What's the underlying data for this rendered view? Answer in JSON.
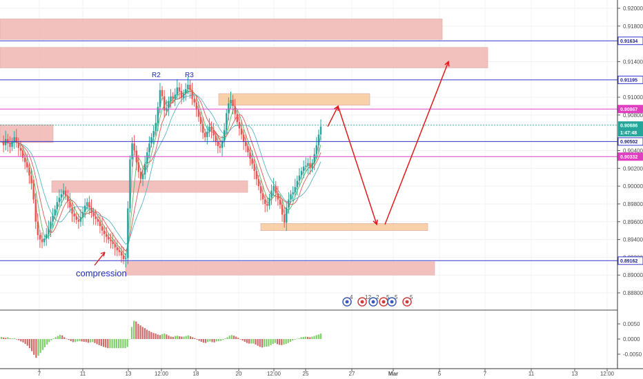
{
  "chart_data": {
    "type": "candlestick",
    "price_axis": {
      "range": [
        0.8862,
        0.9212
      ],
      "tick_labels": [
        "0.92000",
        "0.91800",
        "0.91400",
        "0.91000",
        "0.90800",
        "0.90400",
        "0.90200",
        "0.90000",
        "0.89800",
        "0.89600",
        "0.89400",
        "0.89200",
        "0.89000",
        "0.88800"
      ]
    },
    "oscillator_axis": {
      "range": [
        -0.0072,
        0.0072
      ],
      "tick_labels": [
        "0.0050",
        "0.0000",
        "-0.0050"
      ]
    },
    "time_axis_labels": [
      "7",
      "11",
      "13",
      "12:00",
      "18",
      "20",
      "12:00",
      "25",
      "27",
      "Mar",
      "5",
      "7",
      "11",
      "13",
      "12:00"
    ],
    "horizontal_levels": [
      {
        "price": 0.91634,
        "label": "0.91634",
        "color": "#3333cc"
      },
      {
        "price": 0.91195,
        "label": "0.91195",
        "color": "#3333cc"
      },
      {
        "price": 0.90867,
        "label": "0.90867",
        "color": "#e040c0"
      },
      {
        "price": 0.90502,
        "label": "0.90502",
        "color": "#3333cc"
      },
      {
        "price": 0.90332,
        "label": "0.90332",
        "color": "#e040c0"
      },
      {
        "price": 0.89162,
        "label": "0.89162",
        "color": "#3333cc"
      }
    ],
    "current_price": {
      "label": "0.90686",
      "countdown": "1:47:48",
      "color": "#26a69a"
    },
    "annotations": [
      "R2",
      "R3",
      "compression"
    ],
    "price_series": [
      0.905,
      0.9046,
      0.9053,
      0.9048,
      0.9044,
      0.905,
      0.9055,
      0.9049,
      0.9043,
      0.904,
      0.9032,
      0.9027,
      0.9021,
      0.9012,
      0.9003,
      0.8985,
      0.896,
      0.8945,
      0.894,
      0.8937,
      0.8941,
      0.8946,
      0.8952,
      0.896,
      0.8967,
      0.8974,
      0.8982,
      0.8987,
      0.8991,
      0.8995,
      0.8989,
      0.8983,
      0.8976,
      0.8969,
      0.8966,
      0.8962,
      0.896,
      0.8965,
      0.8971,
      0.8978,
      0.8982,
      0.8976,
      0.897,
      0.8966,
      0.8963,
      0.896,
      0.8955,
      0.895,
      0.8946,
      0.8943,
      0.894,
      0.8938,
      0.8935,
      0.8931,
      0.8928,
      0.8926,
      0.8922,
      0.8918,
      0.8919,
      0.8975,
      0.903,
      0.9048,
      0.904,
      0.9027,
      0.9016,
      0.9008,
      0.9013,
      0.9025,
      0.9038,
      0.9048,
      0.9055,
      0.9062,
      0.9071,
      0.9089,
      0.9108,
      0.9101,
      0.9085,
      0.9088,
      0.9095,
      0.9101,
      0.9098,
      0.9103,
      0.9111,
      0.9107,
      0.9099,
      0.9104,
      0.9109,
      0.9114,
      0.9108,
      0.9098,
      0.9094,
      0.9086,
      0.9078,
      0.907,
      0.906,
      0.9055,
      0.9061,
      0.9067,
      0.9063,
      0.9057,
      0.905,
      0.9045,
      0.9043,
      0.9051,
      0.9063,
      0.9082,
      0.9093,
      0.9097,
      0.909,
      0.9081,
      0.9072,
      0.9065,
      0.9058,
      0.905,
      0.9045,
      0.9038,
      0.9031,
      0.9025,
      0.9017,
      0.9008,
      0.9,
      0.8992,
      0.8985,
      0.898,
      0.8978,
      0.8987,
      0.8995,
      0.9,
      0.8992,
      0.8985,
      0.8979,
      0.8968,
      0.8959,
      0.8976,
      0.8985,
      0.8991,
      0.8993,
      0.8999,
      0.9006,
      0.9012,
      0.9017,
      0.9022,
      0.9023,
      0.9026,
      0.902,
      0.9026,
      0.9036,
      0.9046,
      0.9058,
      0.9067
    ],
    "oscillator_series": [
      0.0007,
      0.0005,
      0.0004,
      0.0006,
      0.0002,
      0.0002,
      0.0003,
      0.0,
      -0.0004,
      -0.0008,
      -0.0011,
      -0.0016,
      -0.0022,
      -0.003,
      -0.004,
      -0.0052,
      -0.0062,
      -0.0055,
      -0.0046,
      -0.0036,
      -0.0027,
      -0.0018,
      -0.001,
      -0.0004,
      0.0002,
      0.0006,
      0.001,
      0.0014,
      0.0012,
      0.0006,
      0.0001,
      -0.0003,
      -0.0007,
      -0.001,
      -0.001,
      -0.0008,
      -0.0007,
      -0.0008,
      -0.0009,
      -0.001,
      -0.0012,
      -0.0011,
      -0.001,
      -0.0013,
      -0.0017,
      -0.002,
      -0.0023,
      -0.0026,
      -0.0028,
      -0.003,
      -0.003,
      -0.003,
      -0.003,
      -0.003,
      -0.003,
      -0.003,
      -0.003,
      -0.003,
      -0.0026,
      0.0,
      0.004,
      0.006,
      0.0058,
      0.005,
      0.0045,
      0.004,
      0.0036,
      0.0031,
      0.0027,
      0.0023,
      0.002,
      0.0018,
      0.0015,
      0.0013,
      0.0016,
      0.0018,
      0.0015,
      0.0011,
      0.0008,
      0.0007,
      0.001,
      0.0011,
      0.0009,
      0.0008,
      0.0008,
      0.001,
      0.0012,
      0.0009,
      0.0006,
      0.0003,
      -0.0002,
      -0.0006,
      -0.0009,
      -0.0012,
      -0.0013,
      -0.001,
      -0.0008,
      -0.001,
      -0.0011,
      -0.0008,
      -0.0007,
      -0.0006,
      -0.0003,
      0.0002,
      0.0006,
      0.0011,
      0.0013,
      0.0011,
      0.0008,
      0.0004,
      0.0,
      -0.0005,
      -0.0009,
      -0.0013,
      -0.0015,
      -0.0015,
      -0.0015,
      -0.0018,
      -0.0022,
      -0.0026,
      -0.0028,
      -0.0026,
      -0.0025,
      -0.0024,
      -0.002,
      -0.0016,
      -0.0013,
      -0.0017,
      -0.0019,
      -0.002,
      -0.0018,
      -0.0016,
      -0.0013,
      -0.0009,
      -0.0005,
      -0.0002,
      0.0001,
      0.0002,
      0.0006,
      0.0007,
      0.0008,
      0.0007,
      0.0006,
      0.0008,
      0.001,
      0.0013,
      0.0015,
      0.0018
    ],
    "zones": [
      {
        "p1": 0.9188,
        "p2": 0.9165,
        "color": "#f0b7b3"
      },
      {
        "p1": 0.9156,
        "p2": 0.9133,
        "color": "#f0b7b3"
      },
      {
        "p1": 0.9104,
        "p2": 0.9091,
        "color": "#f7c99b"
      },
      {
        "p1": 0.9069,
        "p2": 0.9049,
        "color": "#f0b7b3"
      },
      {
        "p1": 0.9006,
        "p2": 0.8993,
        "color": "#f0b7b3"
      },
      {
        "p1": 0.8958,
        "p2": 0.895,
        "color": "#f7c99b"
      },
      {
        "p1": 0.8915,
        "p2": 0.89,
        "color": "#f0b7b3"
      }
    ],
    "projection_path": [
      0.9067,
      0.909,
      0.8957,
      0.8957,
      0.914
    ],
    "event_markers": [
      "4",
      "12",
      "2",
      "5",
      "5",
      "5"
    ]
  }
}
